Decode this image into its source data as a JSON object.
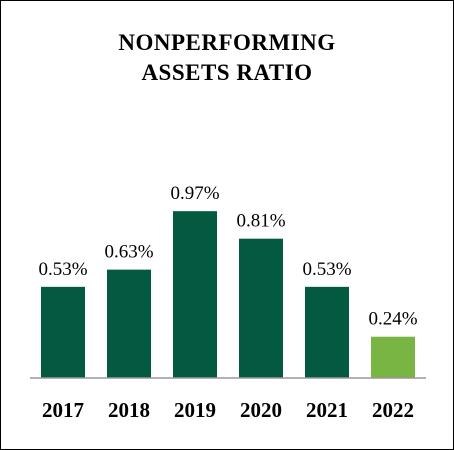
{
  "chart_data": {
    "type": "bar",
    "title_lines": [
      "NONPERFORMING",
      "ASSETS RATIO"
    ],
    "categories": [
      "2017",
      "2018",
      "2019",
      "2020",
      "2021",
      "2022"
    ],
    "values": [
      0.53,
      0.63,
      0.97,
      0.81,
      0.53,
      0.24
    ],
    "value_labels": [
      "0.53%",
      "0.63%",
      "0.97%",
      "0.81%",
      "0.53%",
      "0.24%"
    ],
    "ylim": [
      0,
      1.0
    ],
    "grid": false,
    "colors": {
      "default": "#035a41",
      "highlight": "#78b542",
      "axis": "#999999"
    },
    "highlight_index": 5
  }
}
